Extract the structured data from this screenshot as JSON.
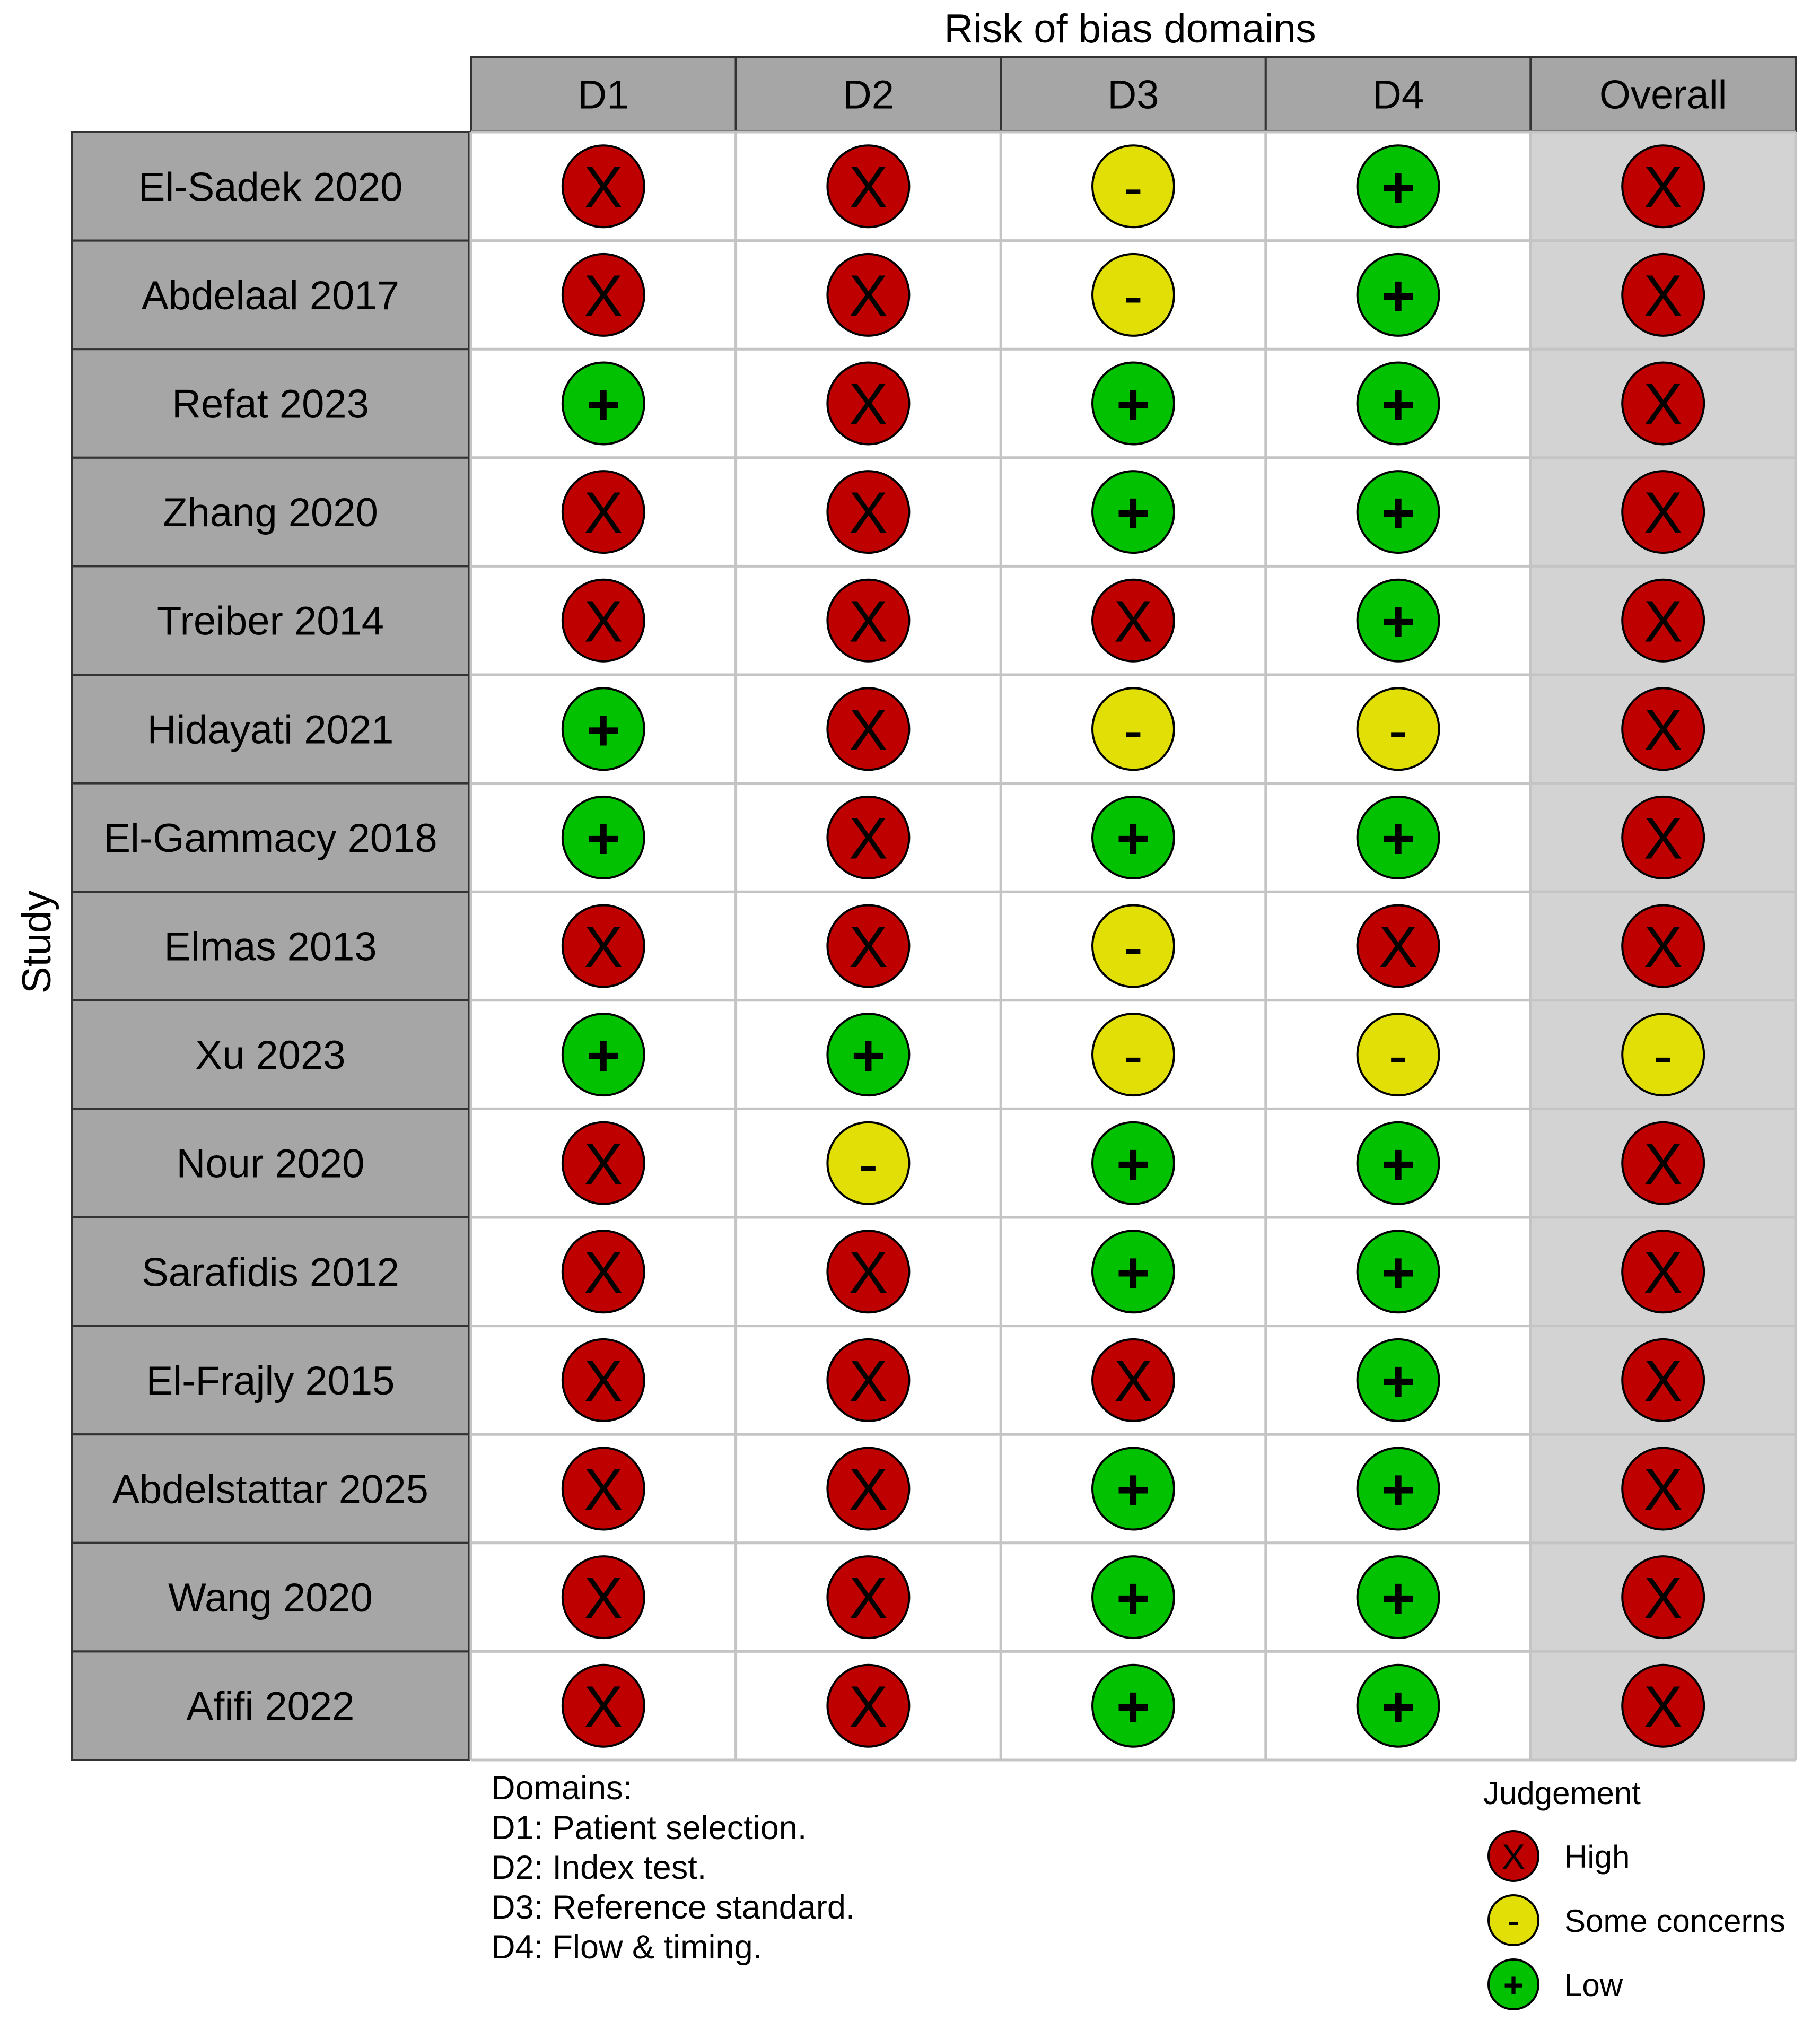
{
  "chart_data": {
    "type": "table",
    "title": "Risk of bias domains",
    "ylabel": "Study",
    "columns": [
      "D1",
      "D2",
      "D3",
      "D4",
      "Overall"
    ],
    "studies": [
      "El-Sadek 2020",
      "Abdelaal 2017",
      "Refat 2023",
      "Zhang 2020",
      "Treiber 2014",
      "Hidayati 2021",
      "El-Gammacy 2018",
      "Elmas 2013",
      "Xu 2023",
      "Nour 2020",
      "Sarafidis 2012",
      "El-Frajly 2015",
      "Abdelstattar 2025",
      "Wang 2020",
      "Afifi 2022"
    ],
    "judgements": [
      [
        "High",
        "High",
        "Some concerns",
        "Low",
        "High"
      ],
      [
        "High",
        "High",
        "Some concerns",
        "Low",
        "High"
      ],
      [
        "Low",
        "High",
        "Low",
        "Low",
        "High"
      ],
      [
        "High",
        "High",
        "Low",
        "Low",
        "High"
      ],
      [
        "High",
        "High",
        "High",
        "Low",
        "High"
      ],
      [
        "Low",
        "High",
        "Some concerns",
        "Some concerns",
        "High"
      ],
      [
        "Low",
        "High",
        "Low",
        "Low",
        "High"
      ],
      [
        "High",
        "High",
        "Some concerns",
        "High",
        "High"
      ],
      [
        "Low",
        "Low",
        "Some concerns",
        "Some concerns",
        "Some concerns"
      ],
      [
        "High",
        "Some concerns",
        "Low",
        "Low",
        "High"
      ],
      [
        "High",
        "High",
        "Low",
        "Low",
        "High"
      ],
      [
        "High",
        "High",
        "High",
        "Low",
        "High"
      ],
      [
        "High",
        "High",
        "Low",
        "Low",
        "High"
      ],
      [
        "High",
        "High",
        "Low",
        "Low",
        "High"
      ],
      [
        "High",
        "High",
        "Low",
        "Low",
        "High"
      ]
    ],
    "domains_title": "Domains:",
    "domains": [
      "D1: Patient selection.",
      "D2: Index test.",
      "D3: Reference standard.",
      "D4: Flow & timing."
    ],
    "legend": {
      "title": "Judgement",
      "position": "bottom-right",
      "items": [
        {
          "label": "High",
          "symbol": "X",
          "color": "#BF0000"
        },
        {
          "label": "Some concerns",
          "symbol": "-",
          "color": "#E2DF07"
        },
        {
          "label": "Low",
          "symbol": "+",
          "color": "#02C100"
        }
      ]
    }
  }
}
